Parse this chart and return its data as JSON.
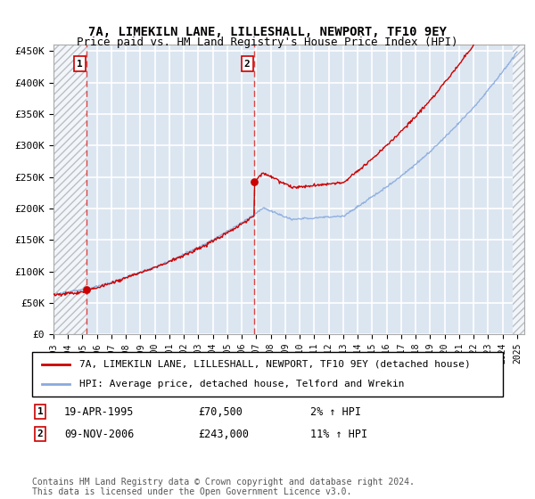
{
  "title": "7A, LIMEKILN LANE, LILLESHALL, NEWPORT, TF10 9EY",
  "subtitle": "Price paid vs. HM Land Registry's House Price Index (HPI)",
  "ylim": [
    0,
    460000
  ],
  "xlim_start": 1993.0,
  "xlim_end": 2025.5,
  "sale1_date": 1995.3,
  "sale1_price": 70500,
  "sale2_date": 2006.87,
  "sale2_price": 243000,
  "property_line_color": "#cc0000",
  "hpi_line_color": "#88aadd",
  "sale_marker_color": "#cc0000",
  "dashed_line_color": "#dd4444",
  "bg_color": "#dce6f1",
  "grid_color": "#ffffff",
  "legend_line1": "7A, LIMEKILN LANE, LILLESHALL, NEWPORT, TF10 9EY (detached house)",
  "legend_line2": "HPI: Average price, detached house, Telford and Wrekin",
  "sale1_col1": "19-APR-1995",
  "sale1_col2": "£70,500",
  "sale1_col3": "2% ↑ HPI",
  "sale2_col1": "09-NOV-2006",
  "sale2_col2": "£243,000",
  "sale2_col3": "11% ↑ HPI",
  "footer": "Contains HM Land Registry data © Crown copyright and database right 2024.\nThis data is licensed under the Open Government Licence v3.0.",
  "xtick_years": [
    1993,
    1994,
    1995,
    1996,
    1997,
    1998,
    1999,
    2000,
    2001,
    2002,
    2003,
    2004,
    2005,
    2006,
    2007,
    2008,
    2009,
    2010,
    2011,
    2012,
    2013,
    2014,
    2015,
    2016,
    2017,
    2018,
    2019,
    2020,
    2021,
    2022,
    2023,
    2024,
    2025
  ],
  "hatch_end": 2024.7,
  "num_box_color": "#cc0000"
}
